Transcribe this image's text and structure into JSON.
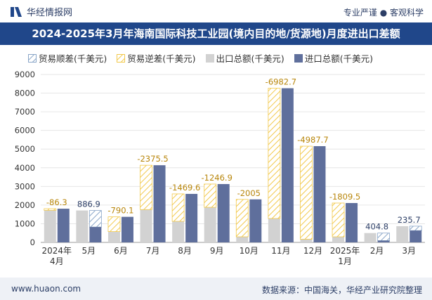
{
  "header": {
    "brand": "华经情报网",
    "tagline": "专业严谨 ● 客观科学",
    "title": "2024-2025年3月年海南国际科技工业园(境内目的地/货源地)月度进出口差额"
  },
  "footer": {
    "website": "www.huaon.com",
    "source": "数据来源：中国海关，华经产业研究院整理"
  },
  "colors": {
    "header_bg": "#20478a",
    "export_bar": "#d2d2d2",
    "import_bar": "#5f6f9c",
    "deficit_hatch": "#f2c94c",
    "surplus_hatch": "#8aa6c8"
  },
  "chart_data": {
    "type": "bar",
    "title": "2024-2025年3月年海南国际科技工业园(境内目的地/货源地)月度进出口差额",
    "categories": [
      "2024年\n4月",
      "5月",
      "6月",
      "7月",
      "8月",
      "9月",
      "10月",
      "11月",
      "12月",
      "2025年\n1月",
      "2月",
      "3月"
    ],
    "ylim": [
      0,
      9000
    ],
    "yticks": [
      0,
      1000,
      2000,
      3000,
      4000,
      5000,
      6000,
      7000,
      8000,
      9000
    ],
    "legend": [
      "贸易顺差(千美元)",
      "贸易逆差(千美元)",
      "出口总额(千美元)",
      "进口总额(千美元)"
    ],
    "series": [
      {
        "name": "出口总额(千美元)",
        "values": [
          1720,
          1710,
          580,
          1760,
          1130,
          1880,
          300,
          1280,
          170,
          300,
          500,
          870
        ]
      },
      {
        "name": "进口总额(千美元)",
        "values": [
          1806.3,
          823.1,
          1370.1,
          4135.5,
          2599.6,
          3126.9,
          2305,
          8262.7,
          5157.7,
          2109.5,
          95.2,
          634.3
        ]
      }
    ],
    "balance": [
      "-86.3",
      "886.9",
      "-790.1",
      "-2375.5",
      "-1469.6",
      "-1246.9",
      "-2005",
      "-6982.7",
      "-4987.7",
      "-1809.5",
      "404.8",
      "235.7"
    ],
    "legend_position": "top"
  }
}
